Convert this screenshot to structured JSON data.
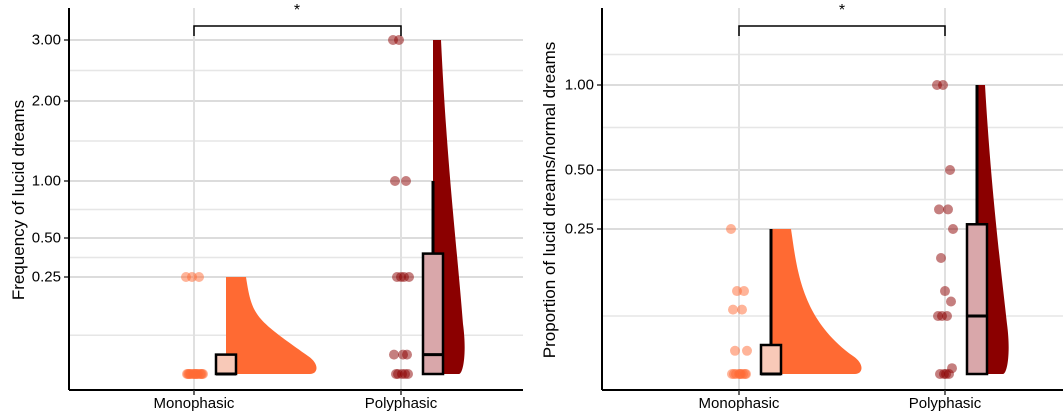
{
  "chart_data": [
    {
      "type": "raincloud",
      "title": "",
      "xlabel": "",
      "ylabel": "Frequency of lucid dreams",
      "categories": [
        "Monophasic",
        "Polyphasic"
      ],
      "y_ticks": [
        0.25,
        0.5,
        1.0,
        2.0,
        3.0
      ],
      "y_tick_labels": [
        "0.25",
        "0.50",
        "1.00",
        "2.00",
        "3.00"
      ],
      "significance": "*",
      "grid": true,
      "groups": [
        {
          "name": "Monophasic",
          "color": "#FF6A33",
          "points": [
            0.25,
            0.25,
            0.25,
            0,
            0,
            0,
            0,
            0,
            0,
            0,
            0,
            0,
            0,
            0,
            0,
            0,
            0,
            0
          ],
          "box": {
            "min": 0,
            "q1": 0,
            "median": 0,
            "q3": 0.05,
            "max": 0.05
          },
          "violin_max": 0.25
        },
        {
          "name": "Polyphasic",
          "color": "#8B0000",
          "points": [
            3,
            3,
            1,
            1,
            0.25,
            0.25,
            0.25,
            0.25,
            0.05,
            0.05,
            0.05,
            0,
            0,
            0,
            0,
            0
          ],
          "box": {
            "min": 0,
            "q1": 0,
            "median": 0.05,
            "q3": 0.4,
            "max": 1
          },
          "violin_max": 3
        }
      ]
    },
    {
      "type": "raincloud",
      "title": "",
      "xlabel": "",
      "ylabel": "Proportion of lucid dreams/normal dreams",
      "categories": [
        "Monophasic",
        "Polyphasic"
      ],
      "y_ticks": [
        0.25,
        0.5,
        1.0
      ],
      "y_tick_labels": [
        "0.25",
        "0.50",
        "1.00"
      ],
      "significance": "*",
      "grid": true,
      "groups": [
        {
          "name": "Monophasic",
          "color": "#FF6A33",
          "points": [
            0.25,
            0.143,
            0.143,
            0.111,
            0.111,
            0.04,
            0.04,
            0,
            0,
            0,
            0,
            0,
            0,
            0,
            0,
            0
          ],
          "box": {
            "min": 0,
            "q1": 0,
            "median": 0,
            "q3": 0.05,
            "max": 0.25
          },
          "violin_max": 0.25
        },
        {
          "name": "Polyphasic",
          "color": "#8B0000",
          "points": [
            1,
            1,
            0.5,
            0.333,
            0.333,
            0.25,
            0.2,
            0.143,
            0.125,
            0.1,
            0.1,
            0.1,
            0.01,
            0,
            0,
            0,
            0
          ],
          "box": {
            "min": 0,
            "q1": 0,
            "median": 0.1,
            "q3": 0.27,
            "max": 1
          },
          "violin_max": 1
        }
      ]
    }
  ]
}
